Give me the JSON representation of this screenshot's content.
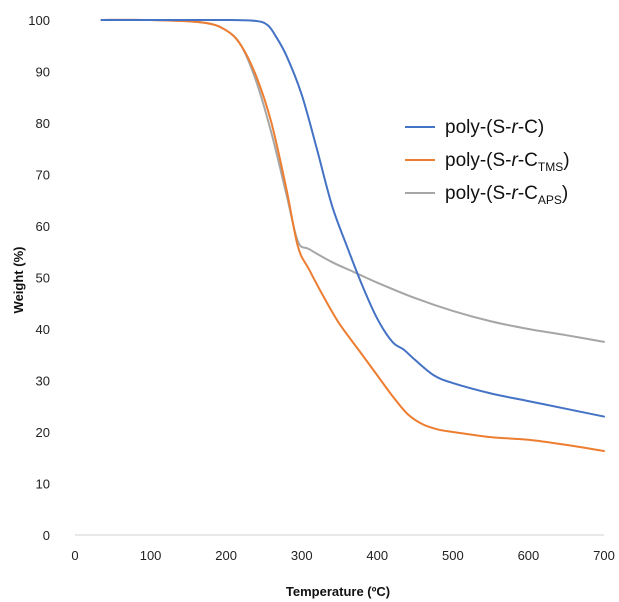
{
  "chart_data": {
    "type": "line",
    "title": "",
    "xlabel": "Temperature (ºC)",
    "ylabel": "Weight (%)",
    "xlim": [
      0,
      700
    ],
    "ylim": [
      0,
      100
    ],
    "xticks": [
      "0",
      "100",
      "200",
      "300",
      "400",
      "500",
      "600",
      "700"
    ],
    "yticks": [
      "0",
      "10",
      "20",
      "30",
      "40",
      "50",
      "60",
      "70",
      "80",
      "90",
      "100"
    ],
    "grid": false,
    "legend_position": "top-right",
    "series": [
      {
        "name": "poly-(S-r-C)",
        "name_parts": {
          "prefix": "poly-(S-",
          "italic": "r",
          "middle": "-C",
          "sub": "",
          "suffix": ")"
        },
        "color": "#4472C4",
        "x": [
          35,
          100,
          200,
          240,
          255,
          265,
          280,
          300,
          320,
          340,
          360,
          380,
          400,
          420,
          435,
          450,
          475,
          500,
          550,
          600,
          650,
          700
        ],
        "y": [
          100,
          100,
          100,
          99.8,
          99,
          97,
          93,
          85.5,
          75,
          64,
          56,
          48.5,
          42,
          37.5,
          36,
          34,
          31,
          29.5,
          27.5,
          26,
          24.5,
          23
        ]
      },
      {
        "name": "poly-(S-r-CTMS)",
        "name_parts": {
          "prefix": "poly-(S-",
          "italic": "r",
          "middle": "-C",
          "sub": "TMS",
          "suffix": ")"
        },
        "color": "#ED7D31",
        "x": [
          35,
          100,
          170,
          200,
          220,
          240,
          260,
          280,
          295,
          310,
          330,
          350,
          375,
          400,
          420,
          440,
          460,
          480,
          500,
          550,
          600,
          650,
          700
        ],
        "y": [
          100,
          100,
          99.5,
          98,
          95,
          89,
          80,
          67,
          56,
          51.5,
          46,
          41,
          36,
          31,
          27,
          23.5,
          21.5,
          20.5,
          20,
          19,
          18.5,
          17.5,
          16.3
        ]
      },
      {
        "name": "poly-(S-r-CAPS)",
        "name_parts": {
          "prefix": "poly-(S-",
          "italic": "r",
          "middle": "-C",
          "sub": "APS",
          "suffix": ")"
        },
        "color": "#A6A6A6",
        "x": [
          35,
          100,
          170,
          200,
          220,
          240,
          260,
          280,
          295,
          310,
          340,
          370,
          400,
          450,
          500,
          550,
          600,
          650,
          700
        ],
        "y": [
          100,
          100,
          99.5,
          98,
          95,
          88,
          78,
          66,
          57,
          55.5,
          53,
          51,
          49,
          46,
          43.5,
          41.5,
          40,
          38.8,
          37.5
        ]
      }
    ]
  }
}
